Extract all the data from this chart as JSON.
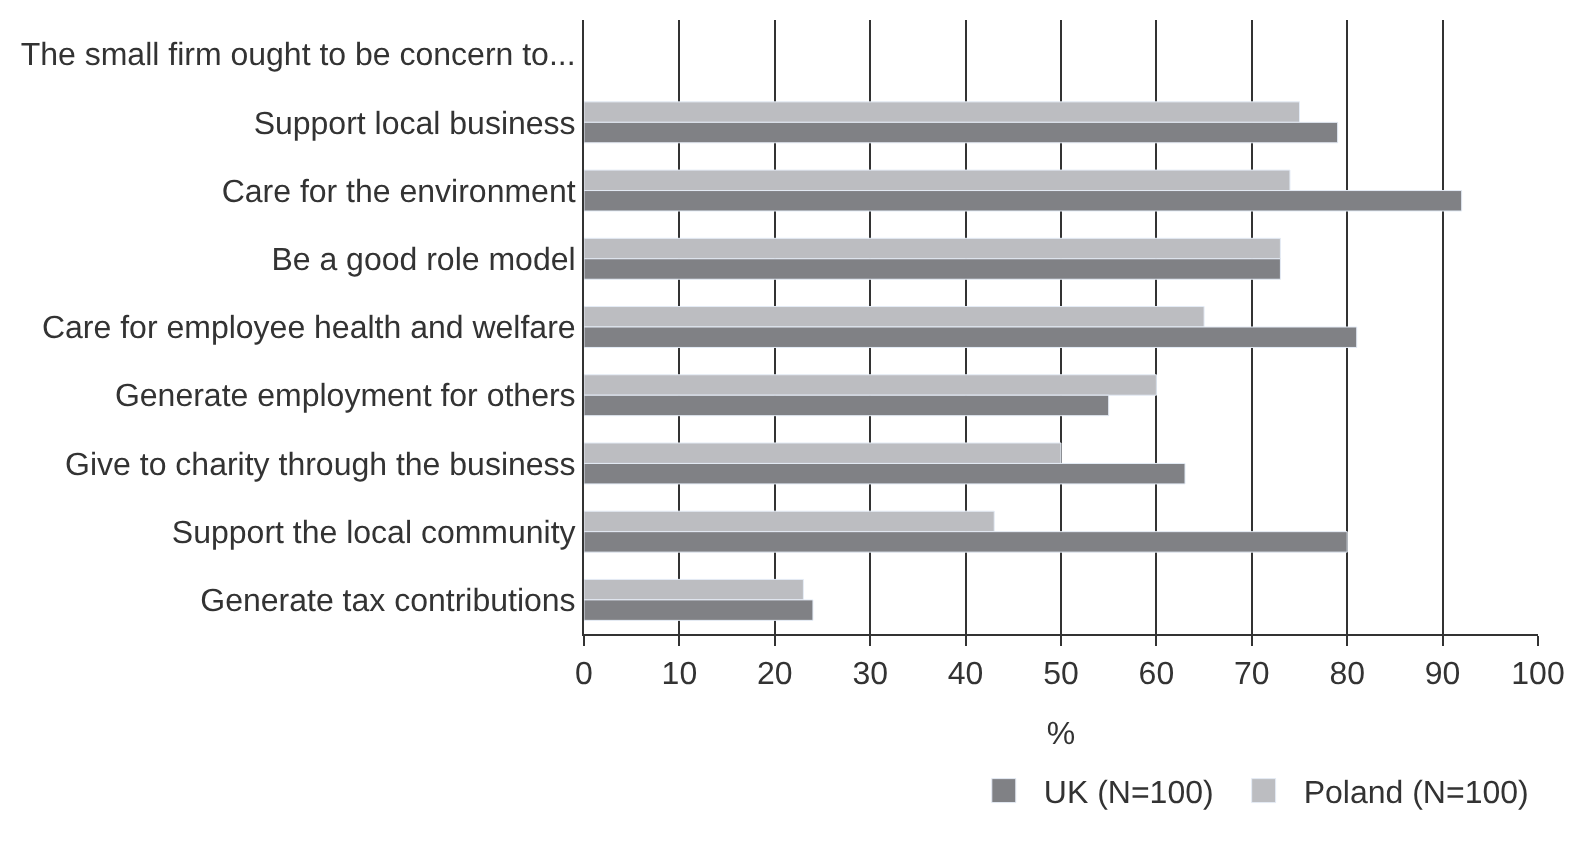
{
  "chart_data": {
    "type": "bar",
    "orientation": "horizontal",
    "xlabel": "%",
    "categories": [
      "The small firm ought to be concern to...",
      "Support local business",
      "Care for the environment",
      "Be a good role model",
      "Care for employee health and welfare",
      "Generate employment for others",
      "Give to charity through the business",
      "Support the local community",
      "Generate tax contributions"
    ],
    "series": [
      {
        "name": "Poland (N=100)",
        "color": "#bcbdc1",
        "values": [
          null,
          75,
          74,
          73,
          65,
          60,
          50,
          43,
          23
        ]
      },
      {
        "name": "UK (N=100)",
        "color": "#808185",
        "values": [
          null,
          79,
          92,
          73,
          81,
          55,
          63,
          80,
          24
        ]
      }
    ],
    "xlim": [
      0,
      100
    ],
    "xticks": [
      0,
      10,
      20,
      30,
      40,
      50,
      60,
      70,
      80,
      90,
      100
    ],
    "grid": "x",
    "legend": "bottom"
  }
}
